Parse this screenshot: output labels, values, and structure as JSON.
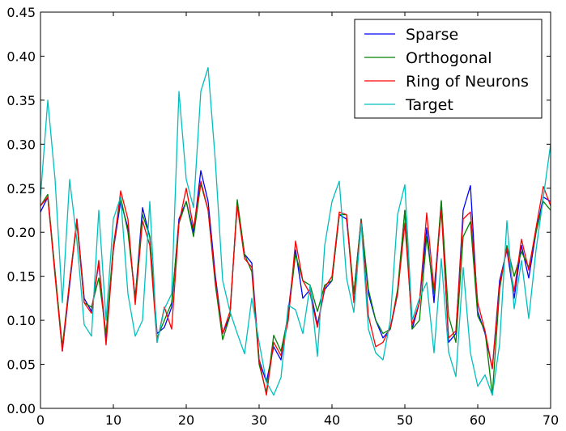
{
  "chart_data": {
    "type": "line",
    "title": "",
    "xlabel": "",
    "ylabel": "",
    "xlim": [
      0,
      70
    ],
    "ylim": [
      0,
      0.45
    ],
    "xticks": [
      0,
      10,
      20,
      30,
      40,
      50,
      60,
      70
    ],
    "xtick_labels": [
      "0",
      "10",
      "20",
      "30",
      "40",
      "50",
      "60",
      "70"
    ],
    "yticks": [
      0,
      0.05,
      0.1,
      0.15,
      0.2,
      0.25,
      0.3,
      0.35,
      0.4,
      0.45
    ],
    "ytick_labels": [
      "0.00",
      "0.05",
      "0.10",
      "0.15",
      "0.20",
      "0.25",
      "0.30",
      "0.35",
      "0.40",
      "0.45"
    ],
    "grid": false,
    "legend_position": "top-right",
    "x": [
      0,
      1,
      2,
      3,
      4,
      5,
      6,
      7,
      8,
      9,
      10,
      11,
      12,
      13,
      14,
      15,
      16,
      17,
      18,
      19,
      20,
      21,
      22,
      23,
      24,
      25,
      26,
      27,
      28,
      29,
      30,
      31,
      32,
      33,
      34,
      35,
      36,
      37,
      38,
      39,
      40,
      41,
      42,
      43,
      44,
      45,
      46,
      47,
      48,
      49,
      50,
      51,
      52,
      53,
      54,
      55,
      56,
      57,
      58,
      59,
      60,
      61,
      62,
      63,
      64,
      65,
      66,
      67,
      68,
      69,
      70
    ],
    "series": [
      {
        "name": "Sparse",
        "color": "#0000ff",
        "values": [
          0.223,
          0.24,
          0.155,
          0.065,
          0.14,
          0.215,
          0.125,
          0.11,
          0.165,
          0.08,
          0.18,
          0.235,
          0.205,
          0.125,
          0.228,
          0.195,
          0.085,
          0.092,
          0.115,
          0.215,
          0.235,
          0.2,
          0.27,
          0.235,
          0.15,
          0.085,
          0.105,
          0.235,
          0.175,
          0.165,
          0.055,
          0.03,
          0.07,
          0.055,
          0.11,
          0.18,
          0.125,
          0.135,
          0.095,
          0.135,
          0.145,
          0.22,
          0.215,
          0.13,
          0.215,
          0.13,
          0.1,
          0.08,
          0.09,
          0.13,
          0.225,
          0.09,
          0.12,
          0.205,
          0.12,
          0.235,
          0.075,
          0.085,
          0.225,
          0.253,
          0.11,
          0.085,
          0.045,
          0.145,
          0.18,
          0.125,
          0.185,
          0.148,
          0.2,
          0.24,
          0.235
        ]
      },
      {
        "name": "Orthogonal",
        "color": "#008000",
        "values": [
          0.23,
          0.243,
          0.155,
          0.07,
          0.145,
          0.21,
          0.12,
          0.115,
          0.148,
          0.085,
          0.185,
          0.24,
          0.2,
          0.125,
          0.22,
          0.195,
          0.08,
          0.1,
          0.12,
          0.21,
          0.235,
          0.195,
          0.255,
          0.225,
          0.14,
          0.078,
          0.105,
          0.237,
          0.175,
          0.155,
          0.05,
          0.018,
          0.083,
          0.065,
          0.105,
          0.175,
          0.145,
          0.14,
          0.11,
          0.14,
          0.145,
          0.22,
          0.22,
          0.13,
          0.215,
          0.135,
          0.1,
          0.085,
          0.09,
          0.135,
          0.225,
          0.09,
          0.1,
          0.195,
          0.13,
          0.236,
          0.105,
          0.075,
          0.195,
          0.212,
          0.105,
          0.088,
          0.015,
          0.135,
          0.185,
          0.15,
          0.178,
          0.16,
          0.2,
          0.235,
          0.225
        ]
      },
      {
        "name": "Ring of Neurons",
        "color": "#ff0000",
        "values": [
          0.23,
          0.24,
          0.15,
          0.065,
          0.145,
          0.215,
          0.12,
          0.108,
          0.168,
          0.072,
          0.18,
          0.247,
          0.215,
          0.118,
          0.213,
          0.185,
          0.075,
          0.115,
          0.09,
          0.21,
          0.25,
          0.205,
          0.258,
          0.225,
          0.145,
          0.085,
          0.11,
          0.23,
          0.17,
          0.16,
          0.055,
          0.015,
          0.075,
          0.06,
          0.1,
          0.19,
          0.145,
          0.13,
          0.092,
          0.137,
          0.15,
          0.223,
          0.22,
          0.12,
          0.213,
          0.105,
          0.07,
          0.075,
          0.092,
          0.13,
          0.21,
          0.095,
          0.12,
          0.222,
          0.135,
          0.225,
          0.08,
          0.088,
          0.215,
          0.223,
          0.12,
          0.088,
          0.045,
          0.14,
          0.182,
          0.133,
          0.192,
          0.157,
          0.205,
          0.252,
          0.23
        ]
      },
      {
        "name": "Target",
        "color": "#00bfbf",
        "values": [
          0.24,
          0.35,
          0.26,
          0.12,
          0.26,
          0.19,
          0.095,
          0.082,
          0.225,
          0.1,
          0.215,
          0.24,
          0.13,
          0.082,
          0.1,
          0.235,
          0.075,
          0.113,
          0.13,
          0.36,
          0.26,
          0.228,
          0.36,
          0.387,
          0.28,
          0.145,
          0.11,
          0.085,
          0.062,
          0.125,
          0.075,
          0.03,
          0.015,
          0.035,
          0.117,
          0.112,
          0.085,
          0.14,
          0.059,
          0.185,
          0.235,
          0.258,
          0.148,
          0.109,
          0.21,
          0.09,
          0.063,
          0.055,
          0.1,
          0.22,
          0.254,
          0.1,
          0.125,
          0.143,
          0.063,
          0.17,
          0.064,
          0.036,
          0.16,
          0.063,
          0.025,
          0.038,
          0.015,
          0.073,
          0.213,
          0.113,
          0.168,
          0.102,
          0.18,
          0.24,
          0.3
        ]
      }
    ]
  }
}
